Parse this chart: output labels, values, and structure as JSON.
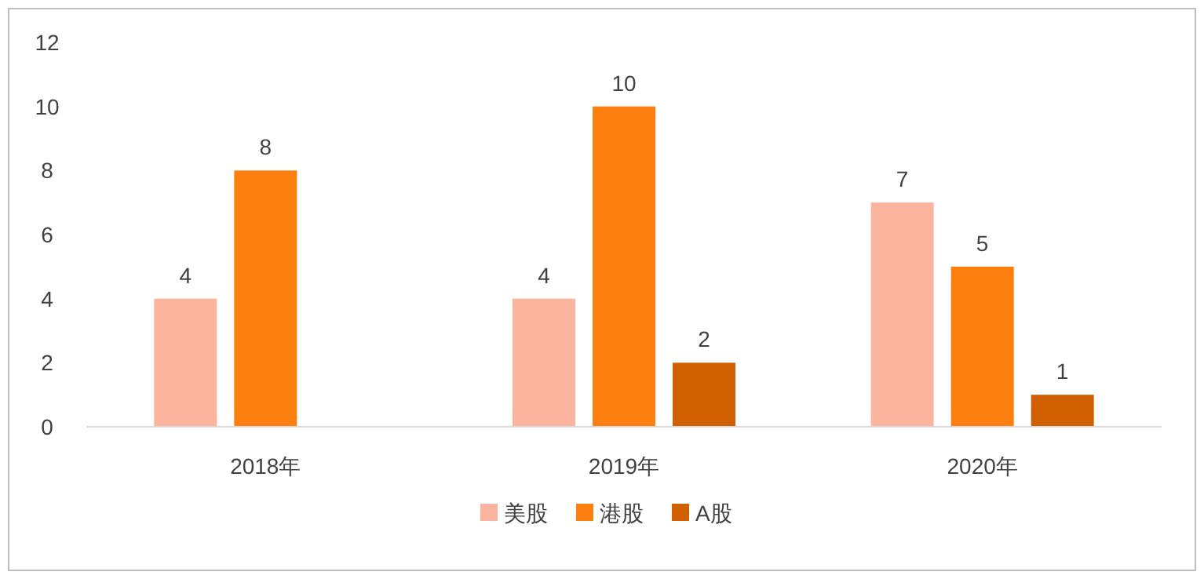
{
  "chart_data": {
    "type": "bar",
    "categories": [
      "2018年",
      "2019年",
      "2020年"
    ],
    "series": [
      {
        "name": "美股",
        "color": "#fbb49e",
        "values": [
          4,
          4,
          7
        ]
      },
      {
        "name": "港股",
        "color": "#fd7f0f",
        "values": [
          8,
          10,
          5
        ]
      },
      {
        "name": "A股",
        "color": "#d05f00",
        "values": [
          null,
          2,
          1
        ]
      }
    ],
    "ylim": [
      0,
      12
    ],
    "yticks": [
      0,
      2,
      4,
      6,
      8,
      10,
      12
    ],
    "data_labels": true,
    "legend": "bottom",
    "grid": false
  }
}
